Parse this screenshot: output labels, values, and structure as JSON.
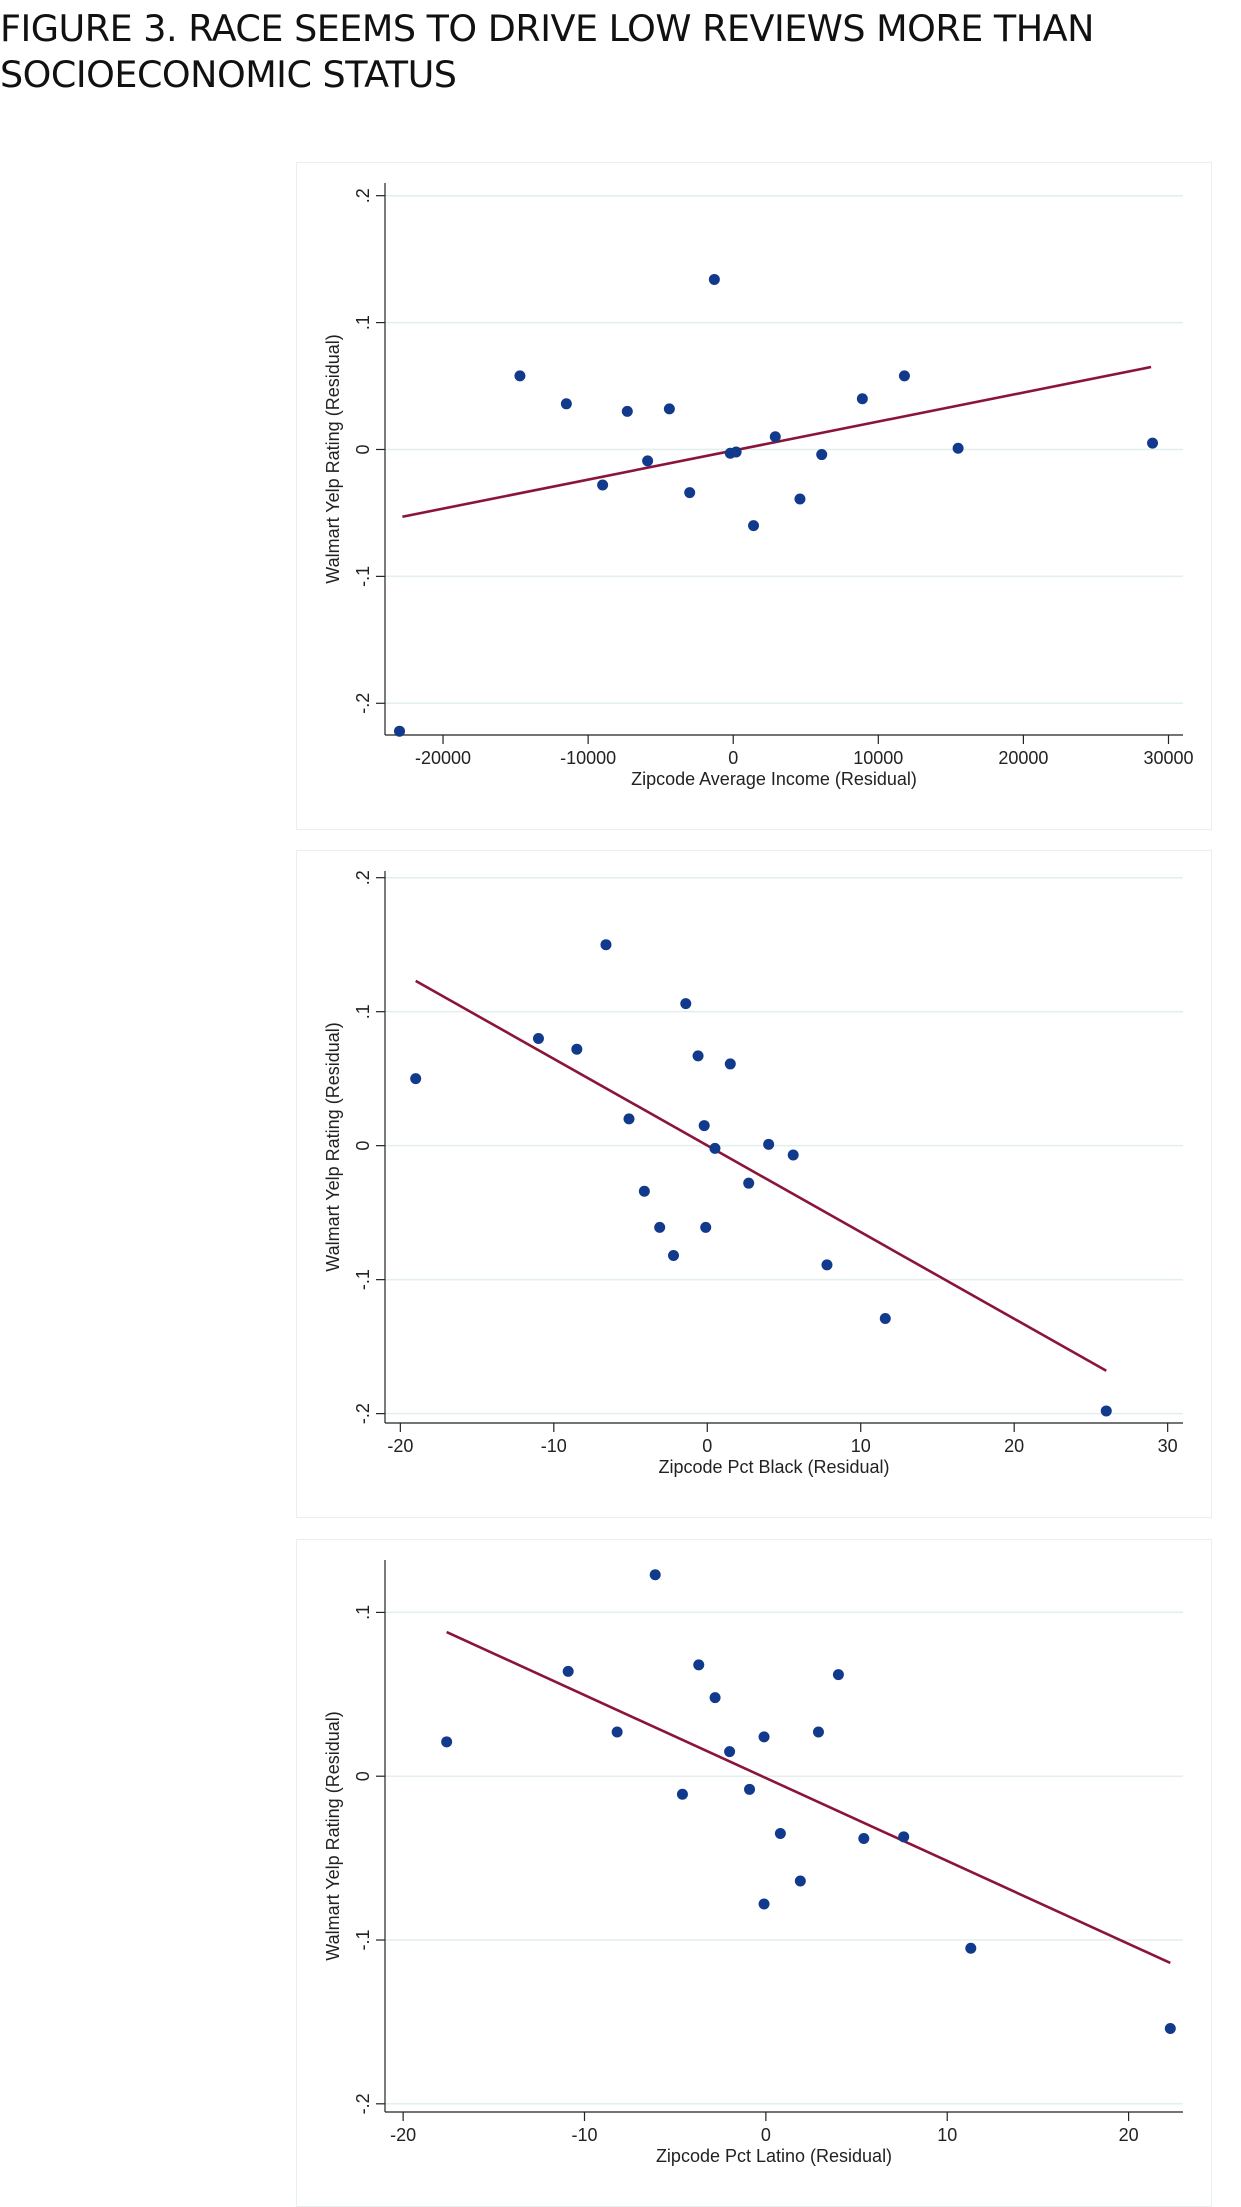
{
  "figure_title_line1": "FIGURE 3. RACE SEEMS TO DRIVE LOW REVIEWS MORE THAN",
  "figure_title_line2": "SOCIOECONOMIC STATUS",
  "colors": {
    "points": "#123a8c",
    "fit_line": "#8b1538",
    "grid": "#e3eeee",
    "axis": "#222222"
  },
  "chart_data": [
    {
      "type": "scatter",
      "title": "",
      "xlabel": "Zipcode Average Income (Residual)",
      "ylabel": "Walmart Yelp Rating (Residual)",
      "xlim": [
        -24000,
        31000
      ],
      "ylim": [
        -0.225,
        0.21
      ],
      "xticks": [
        -20000,
        -10000,
        0,
        10000,
        20000,
        30000
      ],
      "xtick_labels": [
        "-20000",
        "-10000",
        "0",
        "10000",
        "20000",
        "30000"
      ],
      "yticks": [
        -0.2,
        -0.1,
        0,
        0.1,
        0.2
      ],
      "ytick_labels": [
        "-.2",
        "-.1",
        "0",
        ".1",
        ".2"
      ],
      "grid": true,
      "points": [
        [
          -23000,
          -0.222
        ],
        [
          -14700,
          0.058
        ],
        [
          -11500,
          0.036
        ],
        [
          -9000,
          -0.028
        ],
        [
          -7300,
          0.03
        ],
        [
          -5900,
          -0.009
        ],
        [
          -4400,
          0.032
        ],
        [
          -3000,
          -0.034
        ],
        [
          -1300,
          0.134
        ],
        [
          -200,
          -0.003
        ],
        [
          200,
          -0.002
        ],
        [
          1400,
          -0.06
        ],
        [
          2900,
          0.01
        ],
        [
          4600,
          -0.039
        ],
        [
          6100,
          -0.004
        ],
        [
          8900,
          0.04
        ],
        [
          11800,
          0.058
        ],
        [
          15500,
          0.001
        ],
        [
          28900,
          0.005
        ]
      ],
      "fit_line": {
        "x": [
          -22800,
          28800
        ],
        "y": [
          -0.053,
          0.065
        ]
      }
    },
    {
      "type": "scatter",
      "title": "",
      "xlabel": "Zipcode Pct Black (Residual)",
      "ylabel": "Walmart Yelp Rating (Residual)",
      "xlim": [
        -21,
        31
      ],
      "ylim": [
        -0.207,
        0.205
      ],
      "xticks": [
        -20,
        -10,
        0,
        10,
        20,
        30
      ],
      "xtick_labels": [
        "-20",
        "-10",
        "0",
        "10",
        "20",
        "30"
      ],
      "yticks": [
        -0.2,
        -0.1,
        0,
        0.1,
        0.2
      ],
      "ytick_labels": [
        "-.2",
        "-.1",
        "0",
        ".1",
        ".2"
      ],
      "grid": true,
      "points": [
        [
          -19.0,
          0.05
        ],
        [
          -11.0,
          0.08
        ],
        [
          -8.5,
          0.072
        ],
        [
          -6.6,
          0.15
        ],
        [
          -5.1,
          0.02
        ],
        [
          -4.1,
          -0.034
        ],
        [
          -3.1,
          -0.061
        ],
        [
          -2.2,
          -0.082
        ],
        [
          -1.4,
          0.106
        ],
        [
          -0.6,
          0.067
        ],
        [
          -0.2,
          0.015
        ],
        [
          -0.1,
          -0.061
        ],
        [
          0.5,
          -0.002
        ],
        [
          1.5,
          0.061
        ],
        [
          2.7,
          -0.028
        ],
        [
          4.0,
          0.001
        ],
        [
          5.6,
          -0.007
        ],
        [
          7.8,
          -0.089
        ],
        [
          11.6,
          -0.129
        ],
        [
          26.0,
          -0.198
        ]
      ],
      "fit_line": {
        "x": [
          -19.0,
          26.0
        ],
        "y": [
          0.123,
          -0.168
        ]
      }
    },
    {
      "type": "scatter",
      "title": "",
      "xlabel": "Zipcode Pct Latino (Residual)",
      "ylabel": "Walmart Yelp Rating (Residual)",
      "xlim": [
        -21,
        23
      ],
      "ylim": [
        -0.205,
        0.132
      ],
      "xticks": [
        -20,
        -10,
        0,
        10,
        20
      ],
      "xtick_labels": [
        "-20",
        "-10",
        "0",
        "10",
        "20"
      ],
      "yticks": [
        -0.2,
        -0.1,
        0,
        0.1
      ],
      "ytick_labels": [
        "-.2",
        "-.1",
        "0",
        ".1"
      ],
      "grid": true,
      "points": [
        [
          -17.6,
          0.021
        ],
        [
          -10.9,
          0.064
        ],
        [
          -8.2,
          0.027
        ],
        [
          -6.1,
          0.123
        ],
        [
          -4.6,
          -0.011
        ],
        [
          -3.7,
          0.068
        ],
        [
          -2.8,
          0.048
        ],
        [
          -2.0,
          0.015
        ],
        [
          -0.9,
          -0.008
        ],
        [
          -0.1,
          0.024
        ],
        [
          -0.1,
          -0.078
        ],
        [
          0.8,
          -0.035
        ],
        [
          1.9,
          -0.064
        ],
        [
          2.9,
          0.027
        ],
        [
          4.0,
          0.062
        ],
        [
          5.4,
          -0.038
        ],
        [
          7.6,
          -0.037
        ],
        [
          11.3,
          -0.105
        ],
        [
          22.3,
          -0.154
        ]
      ],
      "fit_line": {
        "x": [
          -17.6,
          22.3
        ],
        "y": [
          0.088,
          -0.114
        ]
      }
    }
  ]
}
